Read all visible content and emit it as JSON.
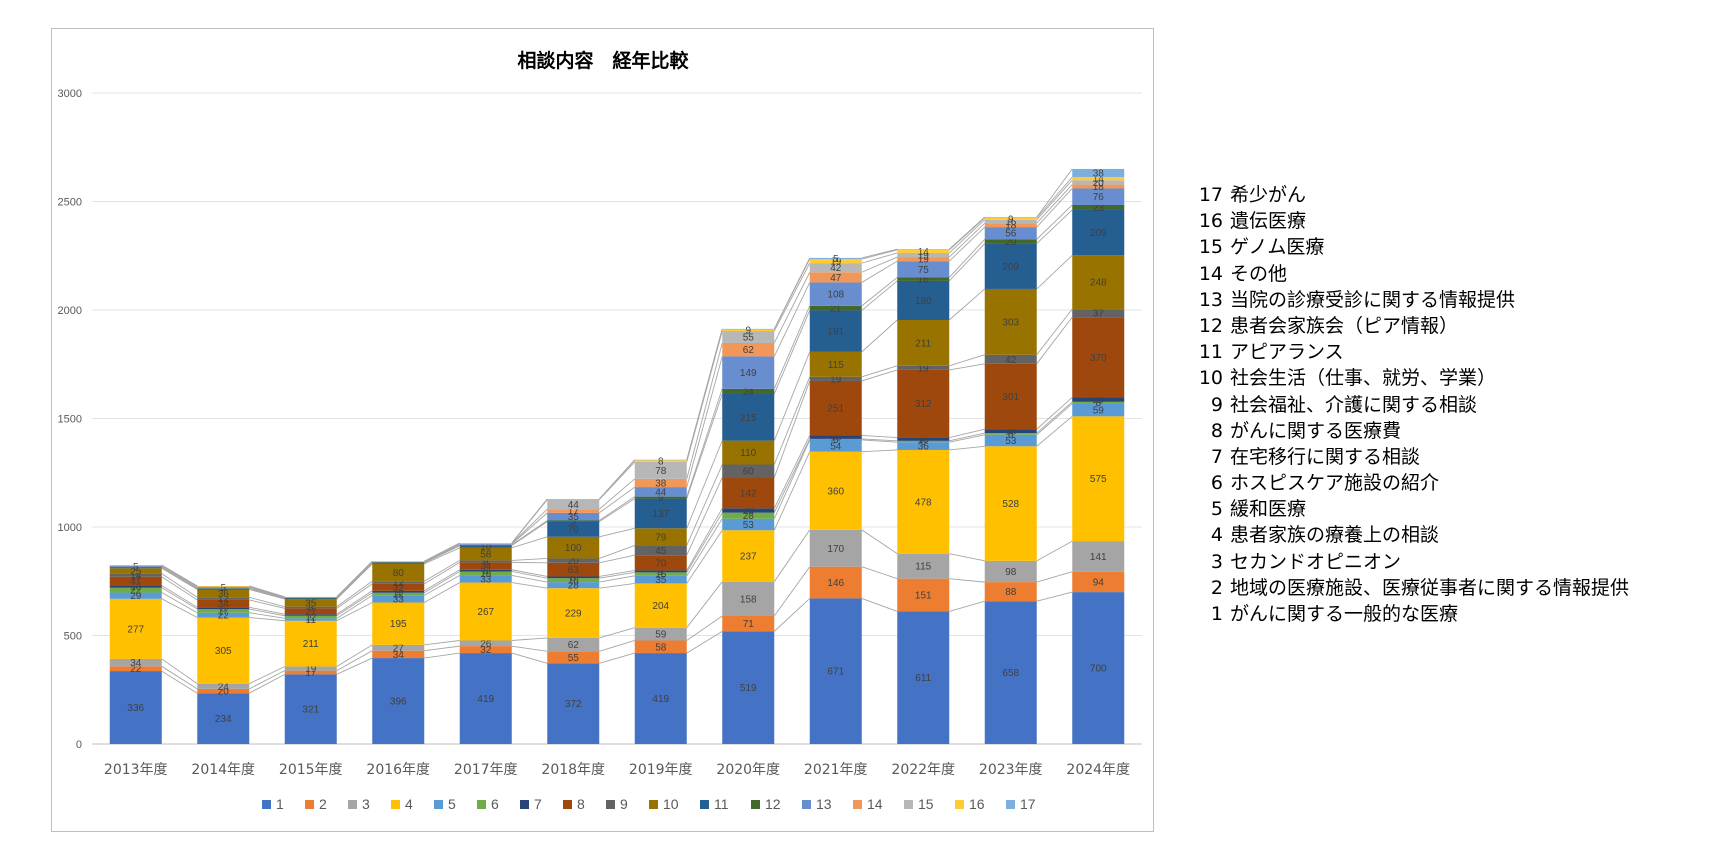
{
  "chart_data": {
    "type": "stacked-bar",
    "title": "相談内容　経年比較",
    "xlabel": "",
    "ylabel": "",
    "ylim": [
      0,
      3000
    ],
    "yticks": [
      0,
      500,
      1000,
      1500,
      2000,
      2500,
      3000
    ],
    "grid": true,
    "series_lines": true,
    "legend_position": "bottom",
    "categories": [
      "2013年度",
      "2014年度",
      "2015年度",
      "2016年度",
      "2017年度",
      "2018年度",
      "2019年度",
      "2020年度",
      "2021年度",
      "2022年度",
      "2023年度",
      "2024年度"
    ],
    "series": [
      {
        "name": "1",
        "color": "#4472C4",
        "values": [
          336,
          234,
          321,
          396,
          419,
          372,
          419,
          519,
          671,
          611,
          658,
          700
        ]
      },
      {
        "name": "2",
        "color": "#ED7D31",
        "values": [
          22,
          20,
          17,
          34,
          32,
          55,
          58,
          71,
          146,
          151,
          88,
          94
        ]
      },
      {
        "name": "3",
        "color": "#A5A5A5",
        "values": [
          34,
          24,
          19,
          27,
          26,
          62,
          59,
          158,
          170,
          115,
          98,
          141
        ]
      },
      {
        "name": "4",
        "color": "#FFC000",
        "values": [
          277,
          305,
          211,
          195,
          267,
          229,
          204,
          237,
          360,
          478,
          528,
          575
        ]
      },
      {
        "name": "5",
        "color": "#5B9BD5",
        "values": [
          29,
          22,
          11,
          33,
          33,
          28,
          35,
          53,
          54,
          36,
          53,
          59
        ]
      },
      {
        "name": "6",
        "color": "#70AD47",
        "values": [
          22,
          17,
          12,
          12,
          18,
          18,
          16,
          28,
          5,
          6,
          8,
          8
        ]
      },
      {
        "name": "7",
        "color": "#264478",
        "values": [
          10,
          8,
          7,
          9,
          8,
          8,
          9,
          20,
          16,
          15,
          18,
          20
        ]
      },
      {
        "name": "8",
        "color": "#9E480E",
        "values": [
          41,
          34,
          27,
          32,
          34,
          63,
          70,
          142,
          251,
          312,
          301,
          370
        ]
      },
      {
        "name": "9",
        "color": "#636363",
        "values": [
          14,
          12,
          8,
          12,
          9,
          20,
          45,
          60,
          19,
          19,
          42,
          37
        ]
      },
      {
        "name": "10",
        "color": "#997300",
        "values": [
          25,
          36,
          35,
          80,
          58,
          100,
          79,
          110,
          115,
          211,
          303,
          248
        ]
      },
      {
        "name": "11",
        "color": "#255E91",
        "values": [
          4,
          4,
          3,
          4,
          10,
          70,
          137,
          215,
          191,
          180,
          209,
          209
        ]
      },
      {
        "name": "12",
        "color": "#43682B",
        "values": [
          1,
          2,
          2,
          3,
          3,
          5,
          9,
          24,
          21,
          16,
          20,
          23
        ]
      },
      {
        "name": "13",
        "color": "#698ED0",
        "values": [
          5,
          5,
          2,
          2,
          4,
          35,
          44,
          149,
          108,
          75,
          56,
          76
        ]
      },
      {
        "name": "14",
        "color": "#F1975A",
        "values": [
          3,
          3,
          2,
          2,
          3,
          17,
          38,
          62,
          47,
          19,
          18,
          18
        ]
      },
      {
        "name": "15",
        "color": "#B7B7B7",
        "values": [
          1,
          1,
          1,
          1,
          1,
          44,
          78,
          55,
          42,
          19,
          16,
          20
        ]
      },
      {
        "name": "16",
        "color": "#FFCD33",
        "values": [
          0,
          1,
          0,
          0,
          1,
          2,
          8,
          9,
          19,
          14,
          9,
          14
        ]
      },
      {
        "name": "17",
        "color": "#7CAFDD",
        "values": [
          0,
          0,
          0,
          0,
          0,
          1,
          2,
          1,
          5,
          3,
          3,
          38
        ]
      }
    ]
  },
  "side_legend": [
    {
      "num": "17",
      "label": "希少がん"
    },
    {
      "num": "16",
      "label": "遺伝医療"
    },
    {
      "num": "15",
      "label": "ゲノム医療"
    },
    {
      "num": "14",
      "label": "その他"
    },
    {
      "num": "13",
      "label": "当院の診療受診に関する情報提供"
    },
    {
      "num": "12",
      "label": "患者会家族会（ピア情報）"
    },
    {
      "num": "11",
      "label": "アピアランス"
    },
    {
      "num": "10",
      "label": "社会生活（仕事、就労、学業）"
    },
    {
      "num": "9",
      "label": "社会福祉、介護に関する相談"
    },
    {
      "num": "8",
      "label": "がんに関する医療費"
    },
    {
      "num": "7",
      "label": "在宅移行に関する相談"
    },
    {
      "num": "6",
      "label": "ホスピスケア施設の紹介"
    },
    {
      "num": "5",
      "label": "緩和医療"
    },
    {
      "num": "4",
      "label": "患者家族の療養上の相談"
    },
    {
      "num": "3",
      "label": "セカンドオピニオン"
    },
    {
      "num": "2",
      "label": "地域の医療施設、医療従事者に関する情報提供"
    },
    {
      "num": "1",
      "label": "がんに関する一般的な医療"
    }
  ]
}
